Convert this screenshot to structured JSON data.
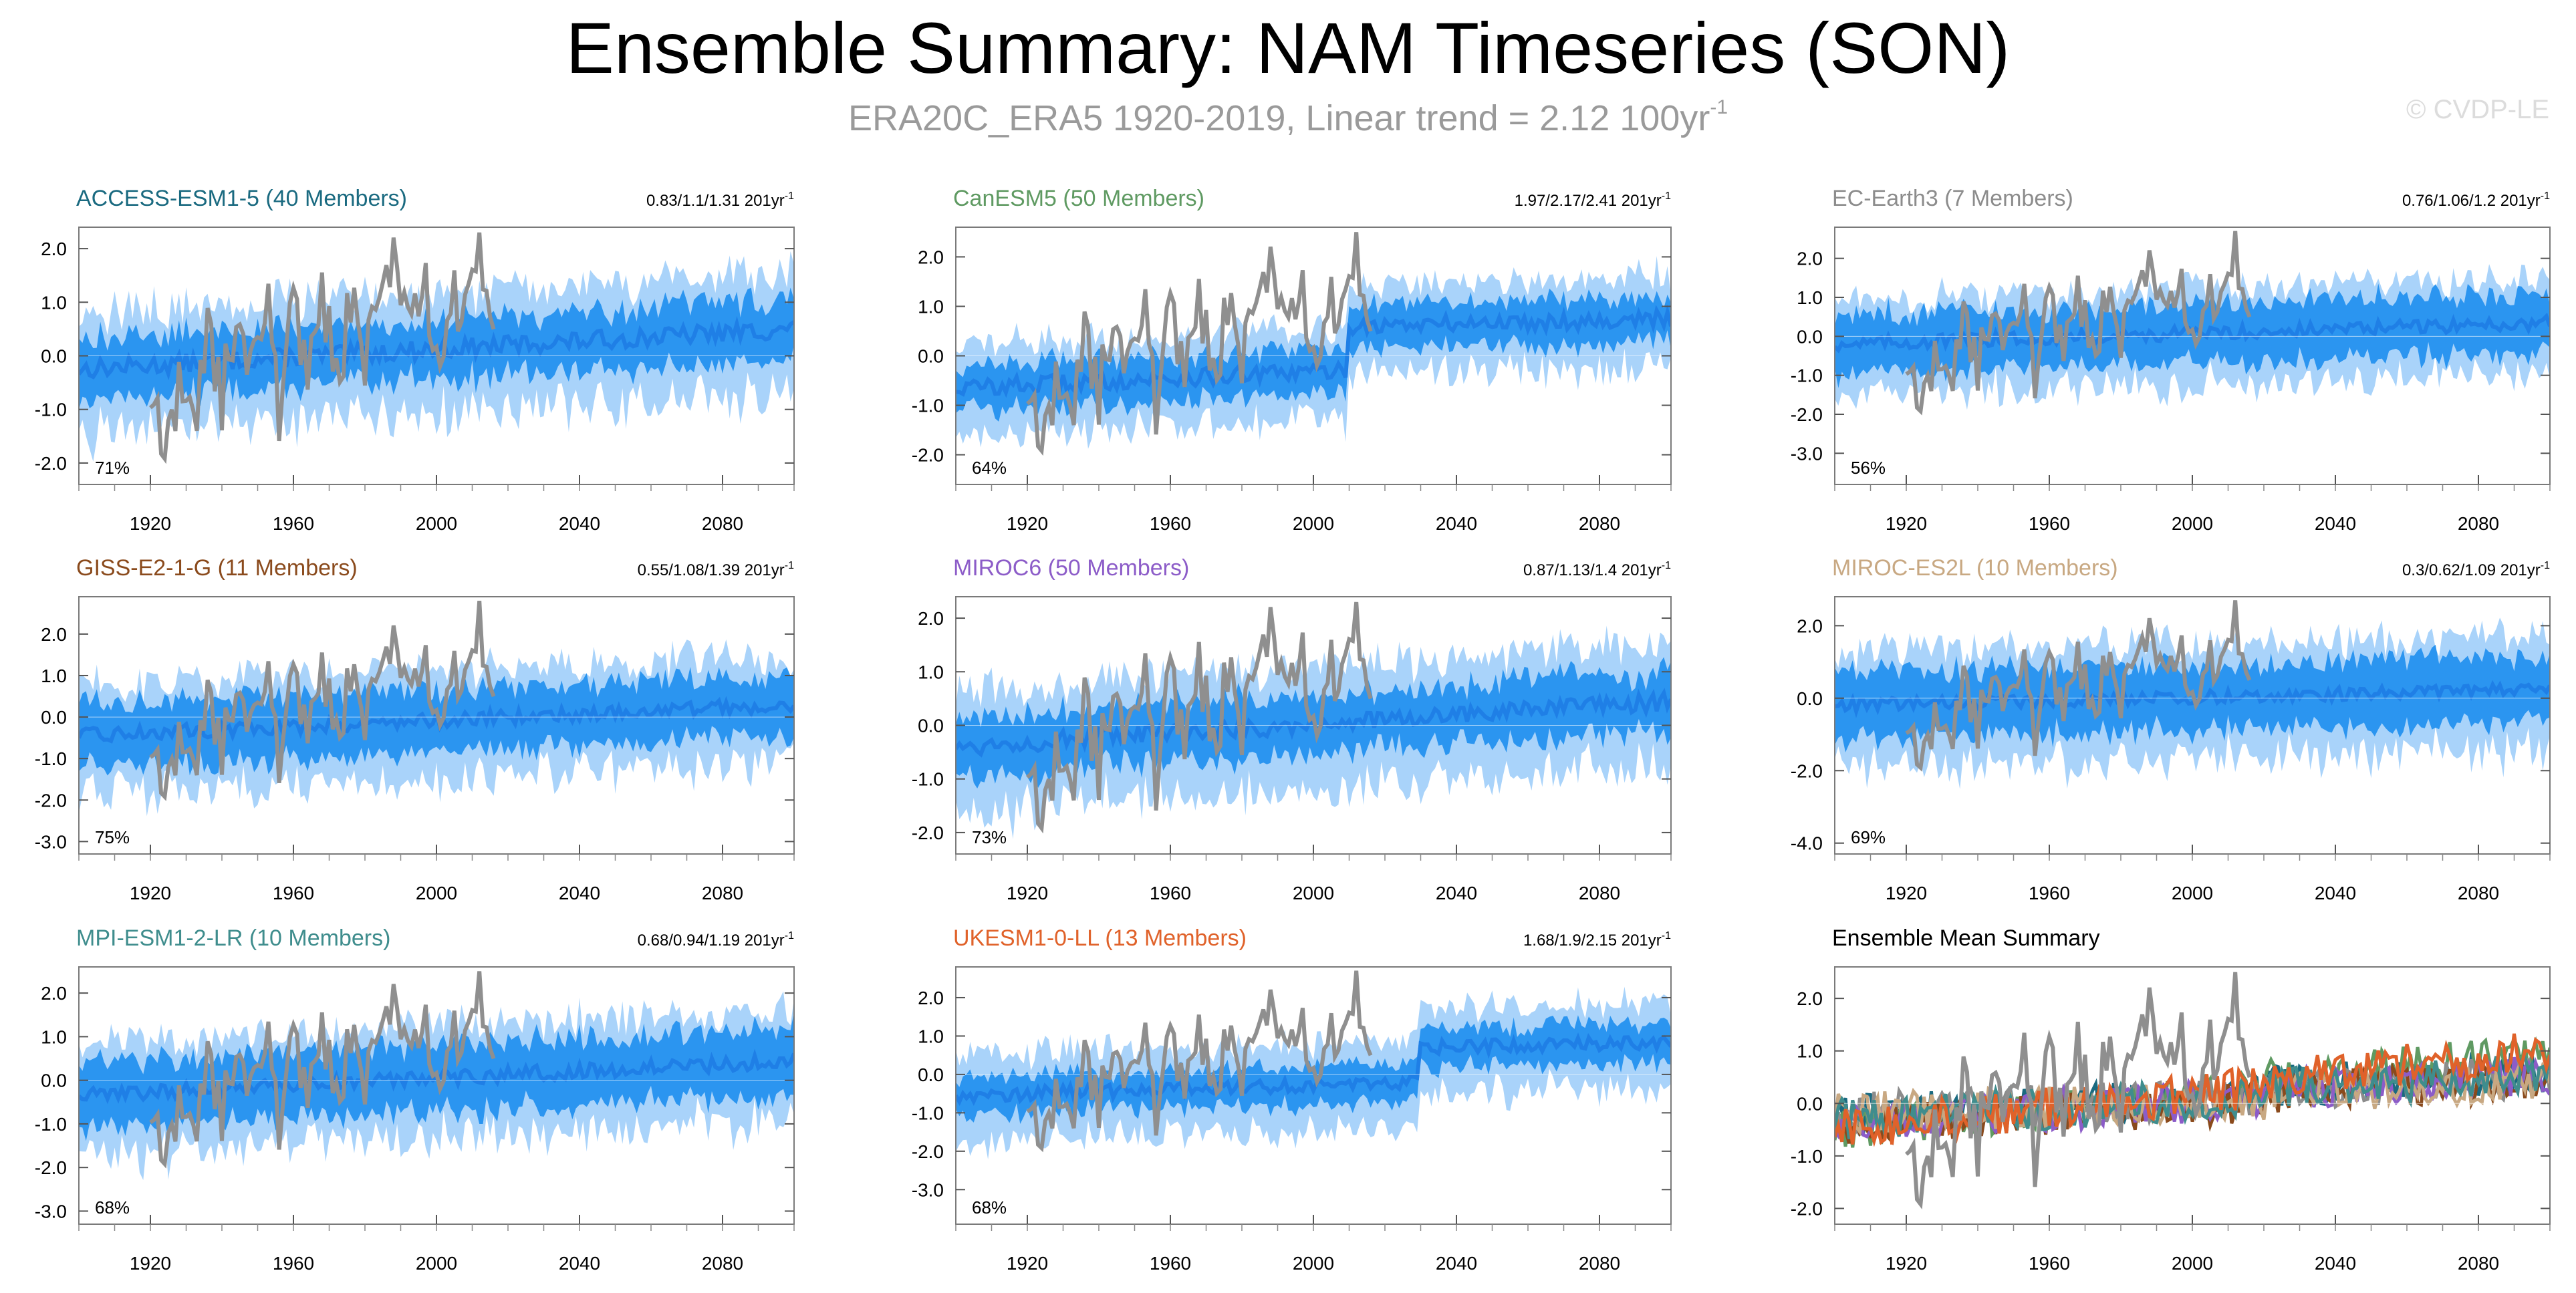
{
  "title": "Ensemble Summary: NAM Timeseries (SON)",
  "subtitle": {
    "text": "ERA20C_ERA5 1920-2019, Linear trend = 2.12 100yr",
    "unit_superscript": "-1"
  },
  "copyright": "© CVDP-LE",
  "colors": {
    "obs": "#8f8f8f",
    "spread_outer": "#a9d3fa",
    "spread_inner": "#2b95f0",
    "ens_mean": "#1f7fe6"
  },
  "chart_data": [
    {
      "type": "line",
      "panel": "ACCESS-ESM1-5",
      "title": "ACCESS-ESM1-5 (40 Members)",
      "title_color": "#1a6a80",
      "trend": "0.83/1.1/1.31 201yr",
      "trend_sup": "-1",
      "pct": "71%",
      "ylim": [
        -2.4,
        2.4
      ],
      "yticks": [
        "2.0",
        "1.0",
        "0.0",
        "-1.0",
        "-2.0"
      ],
      "ytick_values": [
        2,
        1,
        0,
        -1,
        -2
      ],
      "xlim": [
        1900,
        2100
      ],
      "xticks": [
        "1920",
        "1960",
        "2000",
        "2040",
        "2080"
      ],
      "mean_start": -0.25,
      "mean_end": 0.5,
      "mean_break": null,
      "outer_width": 1.05,
      "inner_width": 0.55
    },
    {
      "type": "line",
      "panel": "CanESM5",
      "title": "CanESM5 (50 Members)",
      "title_color": "#5f9a62",
      "trend": "1.97/2.17/2.41 201yr",
      "trend_sup": "-1",
      "pct": "64%",
      "ylim": [
        -2.6,
        2.6
      ],
      "yticks": [
        "2.0",
        "1.0",
        "0.0",
        "-1.0",
        "-2.0"
      ],
      "ytick_values": [
        2,
        1,
        0,
        -1,
        -2
      ],
      "xlim": [
        1900,
        2100
      ],
      "xticks": [
        "1920",
        "1960",
        "2000",
        "2040",
        "2080"
      ],
      "mean_start": -0.65,
      "mean_end": 0.75,
      "mean_break": 2010,
      "outer_width": 0.85,
      "inner_width": 0.45
    },
    {
      "type": "line",
      "panel": "EC-Earth3",
      "title": "EC-Earth3 (7 Members)",
      "title_color": "#8c8c8c",
      "trend": "0.76/1.06/1.2 201yr",
      "trend_sup": "-1",
      "pct": "56%",
      "ylim": [
        -3.8,
        2.8
      ],
      "yticks": [
        "2.0",
        "1.0",
        "0.0",
        "-1.0",
        "-2.0",
        "-3.0"
      ],
      "ytick_values": [
        2,
        1,
        0,
        -1,
        -2,
        -3
      ],
      "xlim": [
        1900,
        2100
      ],
      "xticks": [
        "1920",
        "1960",
        "2000",
        "2040",
        "2080"
      ],
      "mean_start": -0.2,
      "mean_end": 0.35,
      "mean_break": null,
      "outer_width": 1.15,
      "inner_width": 0.75
    },
    {
      "type": "line",
      "panel": "GISS-E2-1-G",
      "title": "GISS-E2-1-G (11 Members)",
      "title_color": "#8a4a1c",
      "trend": "0.55/1.08/1.39 201yr",
      "trend_sup": "-1",
      "pct": "75%",
      "ylim": [
        -3.3,
        2.9
      ],
      "yticks": [
        "2.0",
        "1.0",
        "0.0",
        "-1.0",
        "-2.0",
        "-3.0"
      ],
      "ytick_values": [
        2,
        1,
        0,
        -1,
        -2,
        -3
      ],
      "xlim": [
        1900,
        2100
      ],
      "xticks": [
        "1920",
        "1960",
        "2000",
        "2040",
        "2080"
      ],
      "mean_start": -0.45,
      "mean_end": 0.3,
      "mean_break": null,
      "outer_width": 1.2,
      "inner_width": 0.75
    },
    {
      "type": "line",
      "panel": "MIROC6",
      "title": "MIROC6 (50 Members)",
      "title_color": "#8c5cc8",
      "trend": "0.87/1.13/1.4 201yr",
      "trend_sup": "-1",
      "pct": "73%",
      "ylim": [
        -2.4,
        2.4
      ],
      "yticks": [
        "2.0",
        "1.0",
        "0.0",
        "-1.0",
        "-2.0"
      ],
      "ytick_values": [
        2,
        1,
        0,
        -1,
        -2
      ],
      "xlim": [
        1900,
        2100
      ],
      "xticks": [
        "1920",
        "1960",
        "2000",
        "2040",
        "2080"
      ],
      "mean_start": -0.4,
      "mean_end": 0.45,
      "mean_break": null,
      "outer_width": 1.05,
      "inner_width": 0.55
    },
    {
      "type": "line",
      "panel": "MIROC-ES2L",
      "title": "MIROC-ES2L (10 Members)",
      "title_color": "#c8a882",
      "trend": "0.3/0.62/1.09 201yr",
      "trend_sup": "-1",
      "pct": "69%",
      "ylim": [
        -4.3,
        2.8
      ],
      "yticks": [
        "2.0",
        "0.0",
        "-2.0",
        "-4.0"
      ],
      "ytick_values": [
        2,
        0,
        -2,
        -4
      ],
      "xlim": [
        1900,
        2100
      ],
      "xticks": [
        "1920",
        "1960",
        "2000",
        "2040",
        "2080"
      ],
      "mean_start": -0.2,
      "mean_end": 0.25,
      "mean_break": null,
      "outer_width": 1.5,
      "inner_width": 0.9
    },
    {
      "type": "line",
      "panel": "MPI-ESM1-2-LR",
      "title": "MPI-ESM1-2-LR (10 Members)",
      "title_color": "#3f8d8d",
      "trend": "0.68/0.94/1.19 201yr",
      "trend_sup": "-1",
      "pct": "68%",
      "ylim": [
        -3.3,
        2.6
      ],
      "yticks": [
        "2.0",
        "1.0",
        "0.0",
        "-1.0",
        "-2.0",
        "-3.0"
      ],
      "ytick_values": [
        2,
        1,
        0,
        -1,
        -2,
        -3
      ],
      "xlim": [
        1900,
        2100
      ],
      "xticks": [
        "1920",
        "1960",
        "2000",
        "2040",
        "2080"
      ],
      "mean_start": -0.35,
      "mean_end": 0.45,
      "mean_break": null,
      "outer_width": 1.2,
      "inner_width": 0.75
    },
    {
      "type": "line",
      "panel": "UKESM1-0-LL",
      "title": "UKESM1-0-LL (13 Members)",
      "title_color": "#e0622a",
      "trend": "1.68/1.9/2.15 201yr",
      "trend_sup": "-1",
      "pct": "68%",
      "ylim": [
        -3.9,
        2.8
      ],
      "yticks": [
        "2.0",
        "1.0",
        "0.0",
        "-1.0",
        "-2.0",
        "-3.0"
      ],
      "ytick_values": [
        2,
        1,
        0,
        -1,
        -2,
        -3
      ],
      "xlim": [
        1900,
        2100
      ],
      "xticks": [
        "1920",
        "1960",
        "2000",
        "2040",
        "2080"
      ],
      "mean_start": -0.55,
      "mean_end": 0.85,
      "mean_break": 2030,
      "outer_width": 1.05,
      "inner_width": 0.5
    },
    {
      "type": "line",
      "panel": "summary",
      "title": "Ensemble Mean Summary",
      "title_color": "#000000",
      "ylim": [
        -2.3,
        2.6
      ],
      "yticks": [
        "2.0",
        "1.0",
        "0.0",
        "-1.0",
        "-2.0"
      ],
      "ytick_values": [
        2,
        1,
        0,
        -1,
        -2
      ],
      "xlim": [
        1900,
        2100
      ],
      "xticks": [
        "1920",
        "1960",
        "2000",
        "2040",
        "2080"
      ],
      "series": [
        {
          "name": "ACCESS-ESM1-5",
          "color": "#1a6a80",
          "start": -0.25,
          "end": 0.45
        },
        {
          "name": "CanESM5",
          "color": "#5f9a62",
          "start": -0.5,
          "end": 0.8
        },
        {
          "name": "EC-Earth3",
          "color": "#8c8c8c",
          "start": -0.2,
          "end": 0.35
        },
        {
          "name": "GISS-E2-1-G",
          "color": "#8a4a1c",
          "start": -0.4,
          "end": 0.3
        },
        {
          "name": "MIROC6",
          "color": "#8c5cc8",
          "start": -0.35,
          "end": 0.4
        },
        {
          "name": "MIROC-ES2L",
          "color": "#c8a882",
          "start": -0.2,
          "end": 0.25
        },
        {
          "name": "MPI-ESM1-2-LR",
          "color": "#3f8d8d",
          "start": -0.3,
          "end": 0.4
        },
        {
          "name": "UKESM1-0-LL",
          "color": "#e0622a",
          "start": -0.5,
          "end": 0.85
        }
      ]
    }
  ],
  "observations": {
    "name": "ERA20C_ERA5",
    "years": [
      1920,
      1924,
      1928,
      1932,
      1936,
      1940,
      1944,
      1948,
      1952,
      1956,
      1960,
      1964,
      1968,
      1972,
      1976,
      1980,
      1984,
      1988,
      1992,
      1996,
      2000,
      2004,
      2008,
      2012,
      2016
    ],
    "values": [
      -0.9,
      -1.6,
      -0.6,
      -1.4,
      0.6,
      -0.8,
      1.0,
      -0.5,
      1.3,
      -0.9,
      0.9,
      -0.3,
      1.4,
      -0.6,
      1.2,
      -0.2,
      0.9,
      2.2,
      0.4,
      1.6,
      -0.3,
      1.0,
      0.6,
      2.2,
      0.5
    ]
  }
}
